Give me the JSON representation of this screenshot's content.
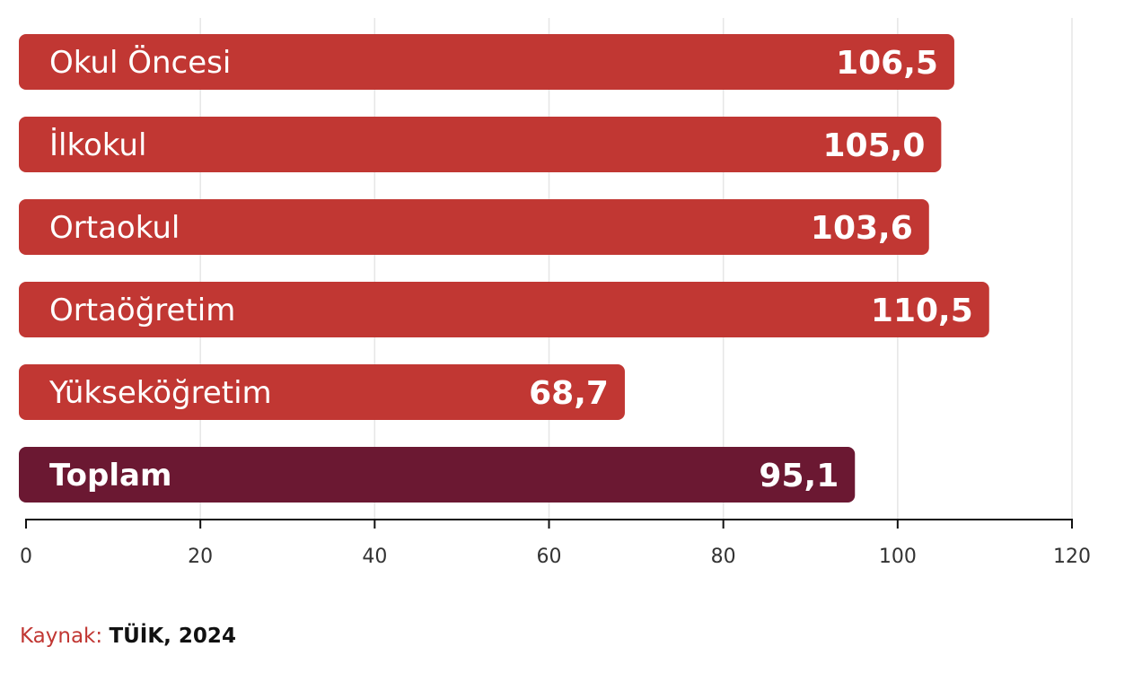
{
  "chart_data": {
    "type": "bar",
    "orientation": "horizontal",
    "categories": [
      "Okul Öncesi",
      "İlkokul",
      "Ortaokul",
      "Ortaöğretim",
      "Yükseköğretim",
      "Toplam"
    ],
    "values": [
      106.5,
      105.0,
      103.6,
      110.5,
      68.7,
      95.1
    ],
    "value_labels": [
      "106,5",
      "105,0",
      "103,6",
      "110,5",
      "68,7",
      "95,1"
    ],
    "xlim": [
      0,
      120
    ],
    "ticks": [
      0,
      20,
      40,
      60,
      80,
      100,
      120
    ],
    "tick_labels": [
      "0",
      "20",
      "40",
      "60",
      "80",
      "100",
      "120"
    ],
    "grid": true,
    "colors": {
      "bar": "#c13733",
      "total": "#6b1832",
      "grid": "#e6e6e6",
      "axis": "#111111"
    },
    "highlight": [
      "Toplam"
    ]
  },
  "source": {
    "label": "Kaynak:",
    "value": "TÜİK, 2024"
  }
}
